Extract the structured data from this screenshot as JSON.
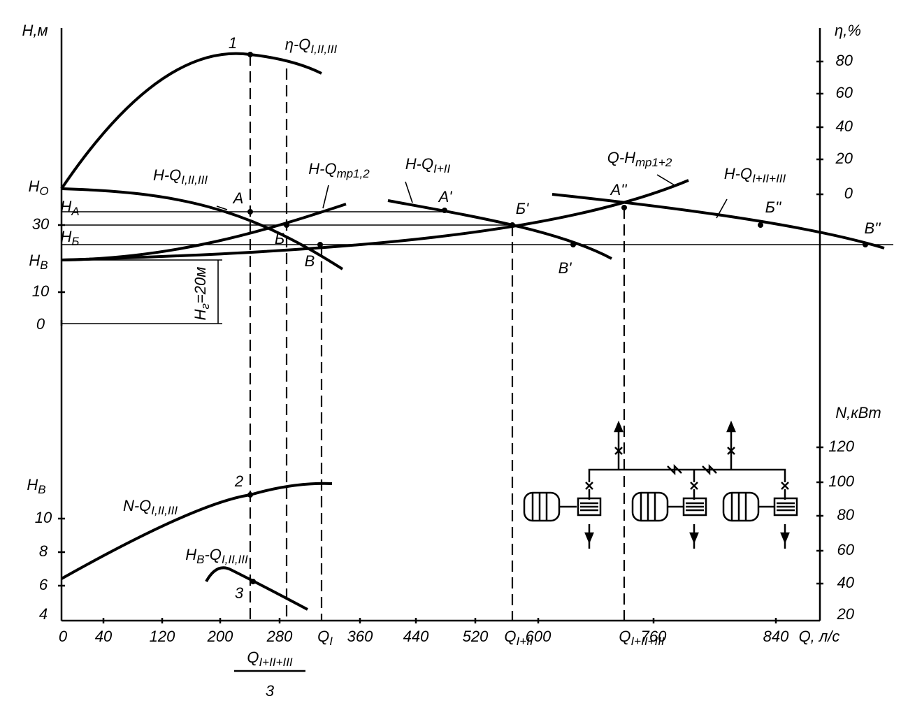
{
  "x_axis": {
    "ticks": [
      "0",
      "40",
      "120",
      "200",
      "280",
      "360",
      "440",
      "520",
      "600",
      "760",
      "840"
    ],
    "title": "Q, л/с",
    "flow_marks": [
      [
        "Q",
        "I"
      ],
      [
        "Q",
        "I+II"
      ],
      [
        "Q",
        "I+II+III"
      ]
    ],
    "fraction": {
      "numerator": [
        "Q",
        "I+II+III"
      ],
      "denominator": "3"
    }
  },
  "head_axis": {
    "title": "H,м",
    "ticks": [
      "30",
      "10",
      "0"
    ],
    "levels": [
      [
        "H",
        "O"
      ],
      [
        "H",
        "A"
      ],
      [
        "H",
        "Б"
      ],
      [
        "H",
        "B"
      ]
    ]
  },
  "efficiency_axis": {
    "title": "η,%",
    "ticks": [
      "80",
      "60",
      "40",
      "20",
      "0"
    ]
  },
  "power_axis": {
    "title": "N,кВт",
    "ticks": [
      "120",
      "100",
      "80",
      "60",
      "40",
      "20"
    ]
  },
  "suction_axis": {
    "title": [
      "H",
      "B"
    ],
    "ticks": [
      "10",
      "8",
      "6",
      "4"
    ]
  },
  "curves": [
    [
      "η-Q",
      "I,II,III"
    ],
    [
      "H-Q",
      "I,II,III"
    ],
    [
      "H-Q",
      "тр1,2"
    ],
    [
      "H-Q",
      "I+II"
    ],
    [
      "Q-H",
      "тр1+2"
    ],
    [
      "H-Q",
      "I+II+III"
    ],
    [
      "N-Q",
      "I,II,III"
    ],
    [
      "H",
      "B",
      "-Q",
      "I,II,III"
    ]
  ],
  "points": [
    "1",
    "A",
    "Б",
    "B",
    "A'",
    "Б'",
    "B'",
    "A''",
    "Б''",
    "B''",
    "2",
    "3"
  ],
  "static_head": [
    "H",
    "г",
    "=20м"
  ]
}
